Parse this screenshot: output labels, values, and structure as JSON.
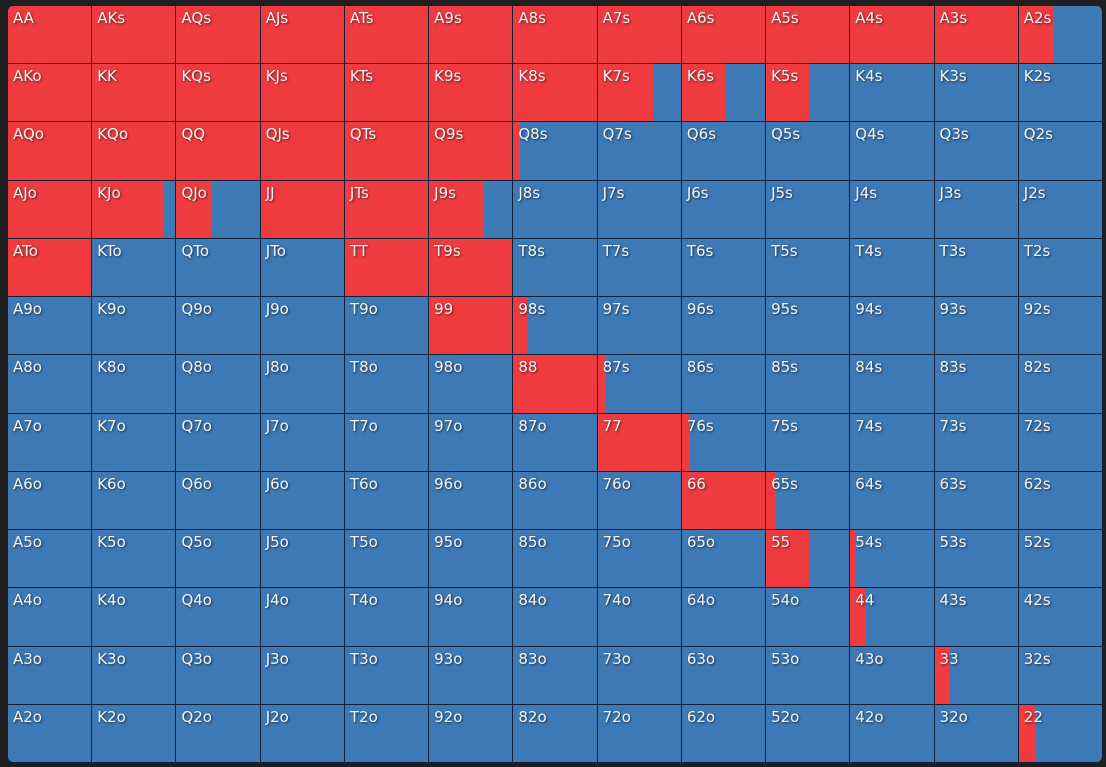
{
  "colors": {
    "action_fill": "#ef3b3f",
    "empty_fill": "#3d79b5",
    "grid_line": "#0f1f38"
  },
  "grid": {
    "rows": [
      {
        "labels": [
          "AA",
          "AKs",
          "AQs",
          "AJs",
          "ATs",
          "A9s",
          "A8s",
          "A7s",
          "A6s",
          "A5s",
          "A4s",
          "A3s",
          "A2s"
        ],
        "freq": [
          1,
          1,
          1,
          1,
          1,
          1,
          1,
          1,
          1,
          1,
          1,
          1,
          0.42
        ]
      },
      {
        "labels": [
          "AKo",
          "KK",
          "KQs",
          "KJs",
          "KTs",
          "K9s",
          "K8s",
          "K7s",
          "K6s",
          "K5s",
          "K4s",
          "K3s",
          "K2s"
        ],
        "freq": [
          1,
          1,
          1,
          1,
          1,
          1,
          1,
          0.66,
          0.52,
          0.52,
          0,
          0,
          0
        ]
      },
      {
        "labels": [
          "AQo",
          "KQo",
          "QQ",
          "QJs",
          "QTs",
          "Q9s",
          "Q8s",
          "Q7s",
          "Q6s",
          "Q5s",
          "Q4s",
          "Q3s",
          "Q2s"
        ],
        "freq": [
          1,
          1,
          1,
          1,
          1,
          1,
          0.08,
          0,
          0,
          0,
          0,
          0,
          0
        ]
      },
      {
        "labels": [
          "AJo",
          "KJo",
          "QJo",
          "JJ",
          "JTs",
          "J9s",
          "J8s",
          "J7s",
          "J6s",
          "J5s",
          "J4s",
          "J3s",
          "J2s"
        ],
        "freq": [
          1,
          0.85,
          0.43,
          1,
          1,
          0.66,
          0,
          0,
          0,
          0,
          0,
          0,
          0
        ]
      },
      {
        "labels": [
          "ATo",
          "KTo",
          "QTo",
          "JTo",
          "TT",
          "T9s",
          "T8s",
          "T7s",
          "T6s",
          "T5s",
          "T4s",
          "T3s",
          "T2s"
        ],
        "freq": [
          1,
          0,
          0,
          0,
          1,
          1,
          0,
          0,
          0,
          0,
          0,
          0,
          0
        ]
      },
      {
        "labels": [
          "A9o",
          "K9o",
          "Q9o",
          "J9o",
          "T9o",
          "99",
          "98s",
          "97s",
          "96s",
          "95s",
          "94s",
          "93s",
          "92s"
        ],
        "freq": [
          0,
          0,
          0,
          0,
          0,
          1,
          0.16,
          0,
          0,
          0,
          0,
          0,
          0
        ]
      },
      {
        "labels": [
          "A8o",
          "K8o",
          "Q8o",
          "J8o",
          "T8o",
          "98o",
          "88",
          "87s",
          "86s",
          "85s",
          "84s",
          "83s",
          "82s"
        ],
        "freq": [
          0,
          0,
          0,
          0,
          0,
          0,
          1,
          0.1,
          0,
          0,
          0,
          0,
          0
        ]
      },
      {
        "labels": [
          "A7o",
          "K7o",
          "Q7o",
          "J7o",
          "T7o",
          "97o",
          "87o",
          "77",
          "76s",
          "75s",
          "74s",
          "73s",
          "72s"
        ],
        "freq": [
          0,
          0,
          0,
          0,
          0,
          0,
          0,
          1,
          0.1,
          0,
          0,
          0,
          0
        ]
      },
      {
        "labels": [
          "A6o",
          "K6o",
          "Q6o",
          "J6o",
          "T6o",
          "96o",
          "86o",
          "76o",
          "66",
          "65s",
          "64s",
          "63s",
          "62s"
        ],
        "freq": [
          0,
          0,
          0,
          0,
          0,
          0,
          0,
          0,
          1,
          0.12,
          0,
          0,
          0
        ]
      },
      {
        "labels": [
          "A5o",
          "K5o",
          "Q5o",
          "J5o",
          "T5o",
          "95o",
          "85o",
          "75o",
          "65o",
          "55",
          "54s",
          "53s",
          "52s"
        ],
        "freq": [
          0,
          0,
          0,
          0,
          0,
          0,
          0,
          0,
          0,
          0.52,
          0.07,
          0,
          0
        ]
      },
      {
        "labels": [
          "A4o",
          "K4o",
          "Q4o",
          "J4o",
          "T4o",
          "94o",
          "84o",
          "74o",
          "64o",
          "54o",
          "44",
          "43s",
          "42s"
        ],
        "freq": [
          0,
          0,
          0,
          0,
          0,
          0,
          0,
          0,
          0,
          0,
          0.19,
          0,
          0
        ]
      },
      {
        "labels": [
          "A3o",
          "K3o",
          "Q3o",
          "J3o",
          "T3o",
          "93o",
          "83o",
          "73o",
          "63o",
          "53o",
          "43o",
          "33",
          "32s"
        ],
        "freq": [
          0,
          0,
          0,
          0,
          0,
          0,
          0,
          0,
          0,
          0,
          0,
          0.19,
          0
        ]
      },
      {
        "labels": [
          "A2o",
          "K2o",
          "Q2o",
          "J2o",
          "T2o",
          "92o",
          "82o",
          "72o",
          "62o",
          "52o",
          "42o",
          "32o",
          "22"
        ],
        "freq": [
          0,
          0,
          0,
          0,
          0,
          0,
          0,
          0,
          0,
          0,
          0,
          0,
          0.19
        ]
      }
    ]
  }
}
